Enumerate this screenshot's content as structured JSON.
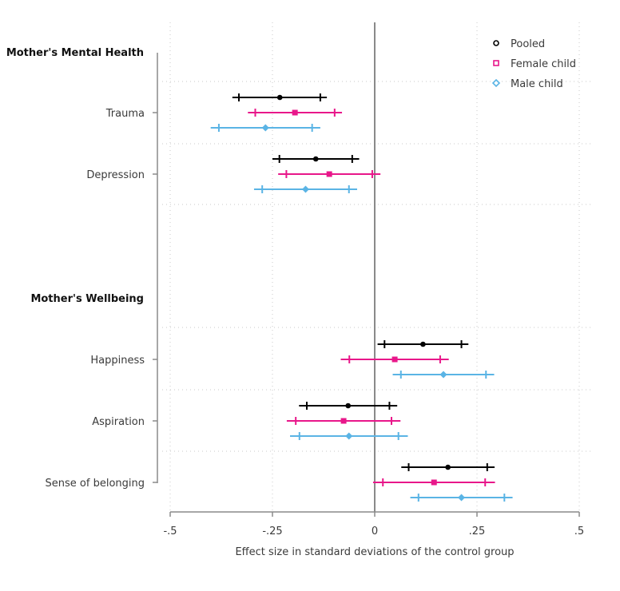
{
  "chart_data": {
    "type": "forest",
    "xlabel": "Effect size in standard deviations of the control group",
    "xlim": [
      -0.5,
      0.5
    ],
    "x_ticks": [
      {
        "value": -0.5,
        "label": "-.5"
      },
      {
        "value": -0.25,
        "label": "-.25"
      },
      {
        "value": 0,
        "label": "0"
      },
      {
        "value": 0.25,
        "label": ".25"
      },
      {
        "value": 0.5,
        "label": ".5"
      }
    ],
    "reference_line": 0,
    "grid": true,
    "legend_position": "top-right",
    "series": [
      {
        "name": "Pooled",
        "color": "#000000",
        "marker": "circle"
      },
      {
        "name": "Female child",
        "color": "#e8178a",
        "marker": "square"
      },
      {
        "name": "Male child",
        "color": "#5ab4e5",
        "marker": "diamond"
      }
    ],
    "groups": [
      {
        "label": "Mother's Mental Health",
        "rows": [
          {
            "label": "Trauma",
            "estimates": [
              {
                "series": "Pooled",
                "estimate": -0.232,
                "ci90": [
                  -0.133,
                  -0.332
                ],
                "ci95": [
                  -0.117,
                  -0.348
                ]
              },
              {
                "series": "Female child",
                "estimate": -0.195,
                "ci90": [
                  -0.098,
                  -0.292
                ],
                "ci95": [
                  -0.08,
                  -0.31
                ]
              },
              {
                "series": "Male child",
                "estimate": -0.267,
                "ci90": [
                  -0.153,
                  -0.381
                ],
                "ci95": [
                  -0.133,
                  -0.401
                ]
              }
            ]
          },
          {
            "label": "Depression",
            "estimates": [
              {
                "series": "Pooled",
                "estimate": -0.144,
                "ci90": [
                  -0.055,
                  -0.233
                ],
                "ci95": [
                  -0.038,
                  -0.25
                ]
              },
              {
                "series": "Female child",
                "estimate": -0.111,
                "ci90": [
                  -0.006,
                  -0.216
                ],
                "ci95": [
                  0.014,
                  -0.236
                ]
              },
              {
                "series": "Male child",
                "estimate": -0.169,
                "ci90": [
                  -0.063,
                  -0.275
                ],
                "ci95": [
                  -0.043,
                  -0.295
                ]
              }
            ]
          }
        ]
      },
      {
        "label": "Mother's Wellbeing",
        "rows": [
          {
            "label": "Happiness",
            "estimates": [
              {
                "series": "Pooled",
                "estimate": 0.118,
                "ci90": [
                  0.212,
                  0.024
                ],
                "ci95": [
                  0.229,
                  0.007
                ]
              },
              {
                "series": "Female child",
                "estimate": 0.049,
                "ci90": [
                  0.16,
                  -0.062
                ],
                "ci95": [
                  0.181,
                  -0.083
                ]
              },
              {
                "series": "Male child",
                "estimate": 0.168,
                "ci90": [
                  0.272,
                  0.064
                ],
                "ci95": [
                  0.292,
                  0.044
                ]
              }
            ]
          },
          {
            "label": "Aspiration",
            "estimates": [
              {
                "series": "Pooled",
                "estimate": -0.065,
                "ci90": [
                  0.036,
                  -0.166
                ],
                "ci95": [
                  0.055,
                  -0.185
                ]
              },
              {
                "series": "Female child",
                "estimate": -0.076,
                "ci90": [
                  0.041,
                  -0.193
                ],
                "ci95": [
                  0.063,
                  -0.215
                ]
              },
              {
                "series": "Male child",
                "estimate": -0.063,
                "ci90": [
                  0.058,
                  -0.184
                ],
                "ci95": [
                  0.081,
                  -0.207
                ]
              }
            ]
          },
          {
            "label": "Sense of belonging",
            "estimates": [
              {
                "series": "Pooled",
                "estimate": 0.179,
                "ci90": [
                  0.275,
                  0.083
                ],
                "ci95": [
                  0.293,
                  0.065
                ]
              },
              {
                "series": "Female child",
                "estimate": 0.145,
                "ci90": [
                  0.27,
                  0.02
                ],
                "ci95": [
                  0.294,
                  -0.004
                ]
              },
              {
                "series": "Male child",
                "estimate": 0.212,
                "ci90": [
                  0.317,
                  0.107
                ],
                "ci95": [
                  0.337,
                  0.087
                ]
              }
            ]
          }
        ]
      }
    ]
  }
}
